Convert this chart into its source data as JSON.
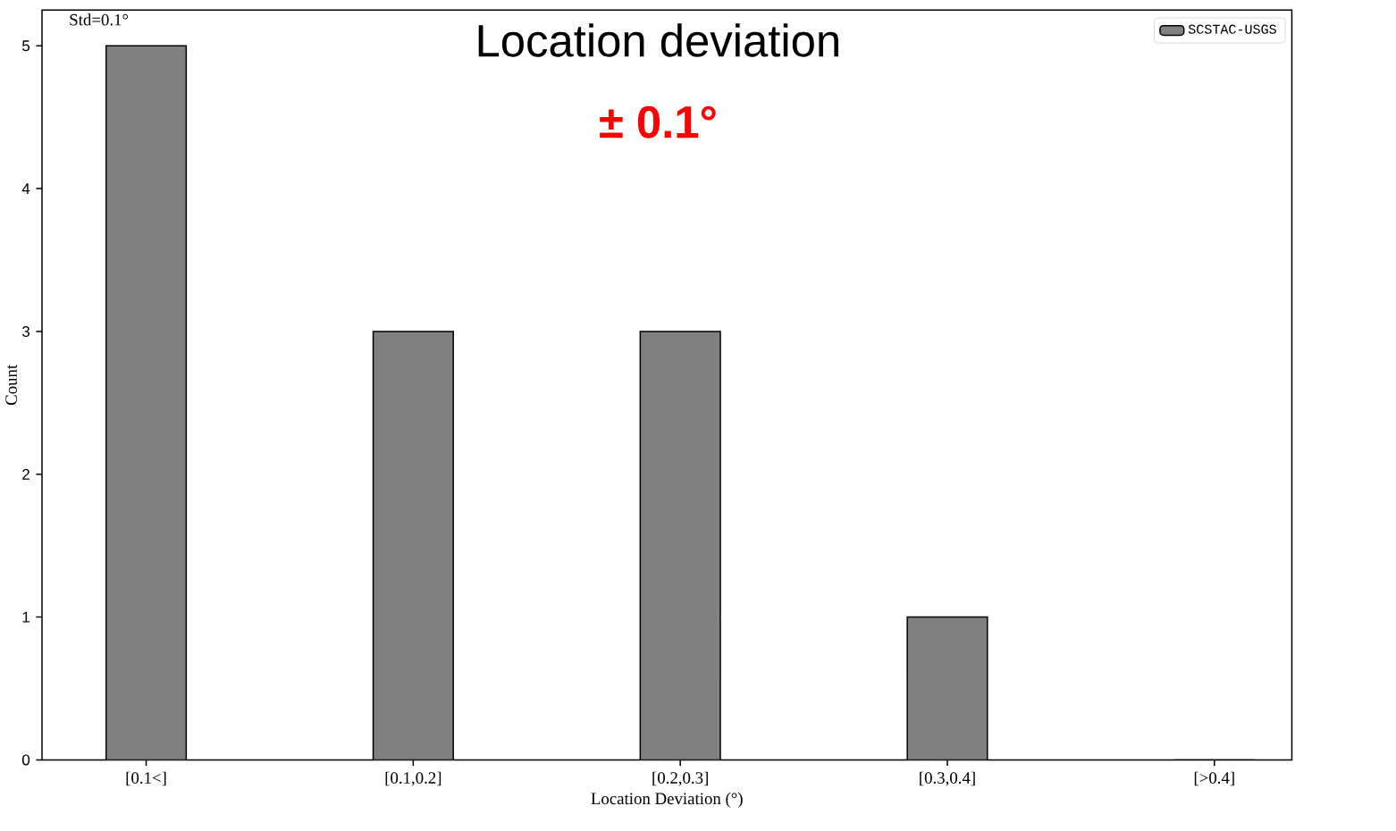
{
  "chart_data": {
    "type": "bar",
    "title": "Location deviation",
    "subtitle": "± 0.1°",
    "xlabel": "Location Deviation (°)",
    "ylabel": "Count",
    "annotations": [
      "Std=0.1°"
    ],
    "categories": [
      "[0.1<]",
      "[0.1,0.2]",
      "[0.2,0.3]",
      "[0.3,0.4]",
      "[>0.4]"
    ],
    "series": [
      {
        "name": "SCSTAC-USGS",
        "color": "#808080",
        "values": [
          5,
          3,
          3,
          1,
          0
        ]
      }
    ],
    "ylim": [
      0,
      5.25
    ],
    "yticks": [
      0,
      1,
      2,
      3,
      4,
      5
    ],
    "grid": false,
    "legend": "top right"
  }
}
